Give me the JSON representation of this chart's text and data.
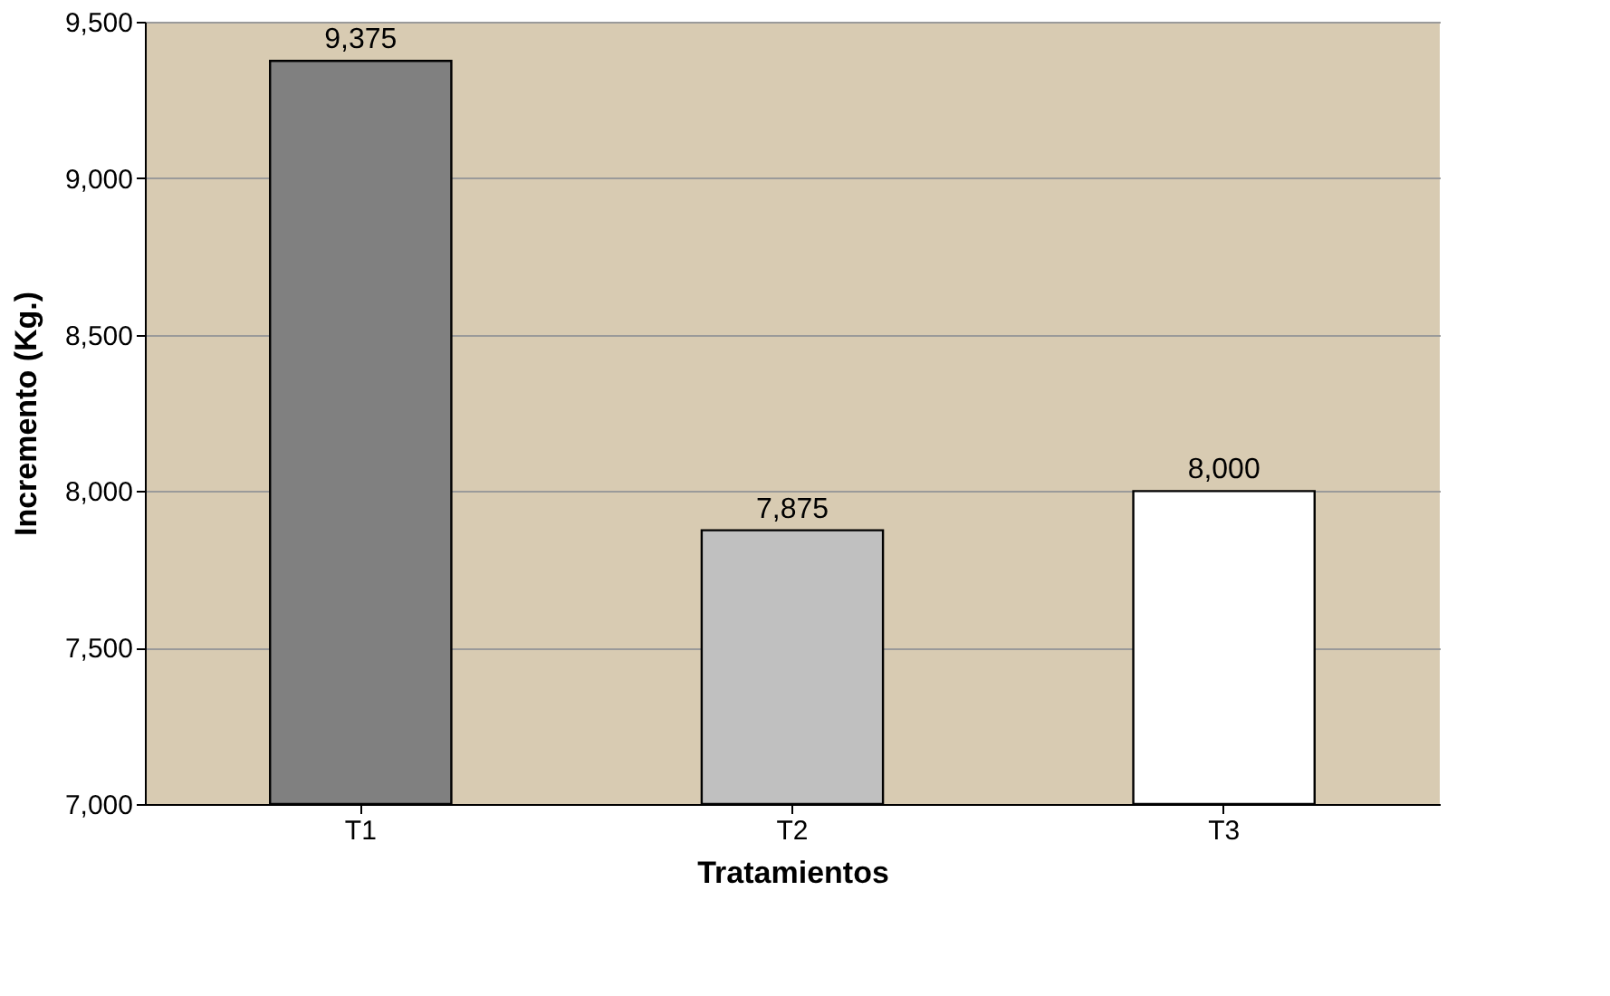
{
  "chart_data": {
    "type": "bar",
    "xlabel": "Tratamientos",
    "ylabel": "Incremento (Kg.)",
    "categories": [
      "T1",
      "T2",
      "T3"
    ],
    "values": [
      9375,
      7875,
      8000
    ],
    "value_labels": [
      "9,375",
      "7,875",
      "8,000"
    ],
    "colors": [
      "#808080",
      "#c0c0c0",
      "#ffffff"
    ],
    "ylim": [
      7000,
      9500
    ],
    "yticks": [
      {
        "value": 7000,
        "label": "7,000"
      },
      {
        "value": 7500,
        "label": "7,500"
      },
      {
        "value": 8000,
        "label": "8,000"
      },
      {
        "value": 8500,
        "label": "8,500"
      },
      {
        "value": 9000,
        "label": "9,000"
      },
      {
        "value": 9500,
        "label": "9,500"
      }
    ],
    "grid": "y"
  }
}
